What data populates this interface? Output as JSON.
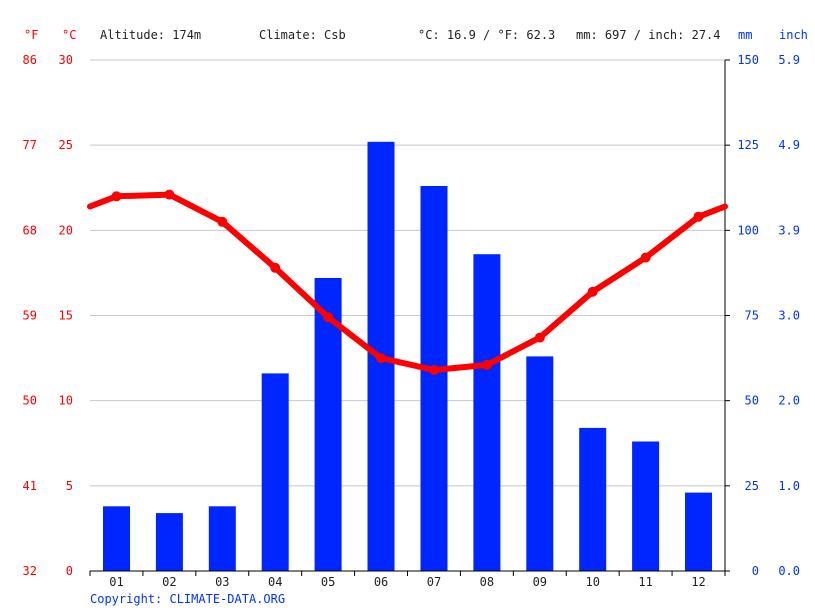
{
  "header": {
    "unit_f": "°F",
    "unit_c": "°C",
    "altitude": "Altitude: 174m",
    "climate": "Climate: Csb",
    "temp_summary": "°C: 16.9 / °F: 62.3",
    "precip_summary": "mm: 697 / inch: 27.4",
    "unit_mm": "mm",
    "unit_inch": "inch"
  },
  "copyright": "Copyright: CLIMATE-DATA.ORG",
  "colors": {
    "temperature": "#ff0000",
    "precipitation": "#0026ff",
    "left_axis_text": "#ff0000",
    "right_axis_text": "#0033ff",
    "grid": "#c8c8c8"
  },
  "chart_data": {
    "type": "bar",
    "categories": [
      "01",
      "02",
      "03",
      "04",
      "05",
      "06",
      "07",
      "08",
      "09",
      "10",
      "11",
      "12"
    ],
    "series": [
      {
        "type": "bar",
        "axis": "right",
        "values": [
          19,
          17,
          19,
          58,
          86,
          126,
          113,
          93,
          63,
          42,
          38,
          23
        ]
      },
      {
        "type": "line",
        "axis": "left",
        "values": [
          22.0,
          22.1,
          20.5,
          17.8,
          14.9,
          12.5,
          11.8,
          12.1,
          13.7,
          16.4,
          18.4,
          20.8
        ]
      }
    ],
    "left_axis_c": {
      "ticks": [
        "30",
        "25",
        "20",
        "15",
        "10",
        "5",
        "0"
      ],
      "range": [
        0,
        30
      ]
    },
    "left_axis_f": {
      "ticks": [
        "86",
        "77",
        "68",
        "59",
        "50",
        "41",
        "32"
      ]
    },
    "right_axis_mm": {
      "ticks": [
        "150",
        "125",
        "100",
        "75",
        "50",
        "25",
        "0"
      ],
      "range": [
        0,
        150
      ]
    },
    "right_axis_inch": {
      "ticks": [
        "5.9",
        "4.9",
        "3.9",
        "3.0",
        "2.0",
        "1.0",
        "0.0"
      ]
    },
    "grid": true
  }
}
